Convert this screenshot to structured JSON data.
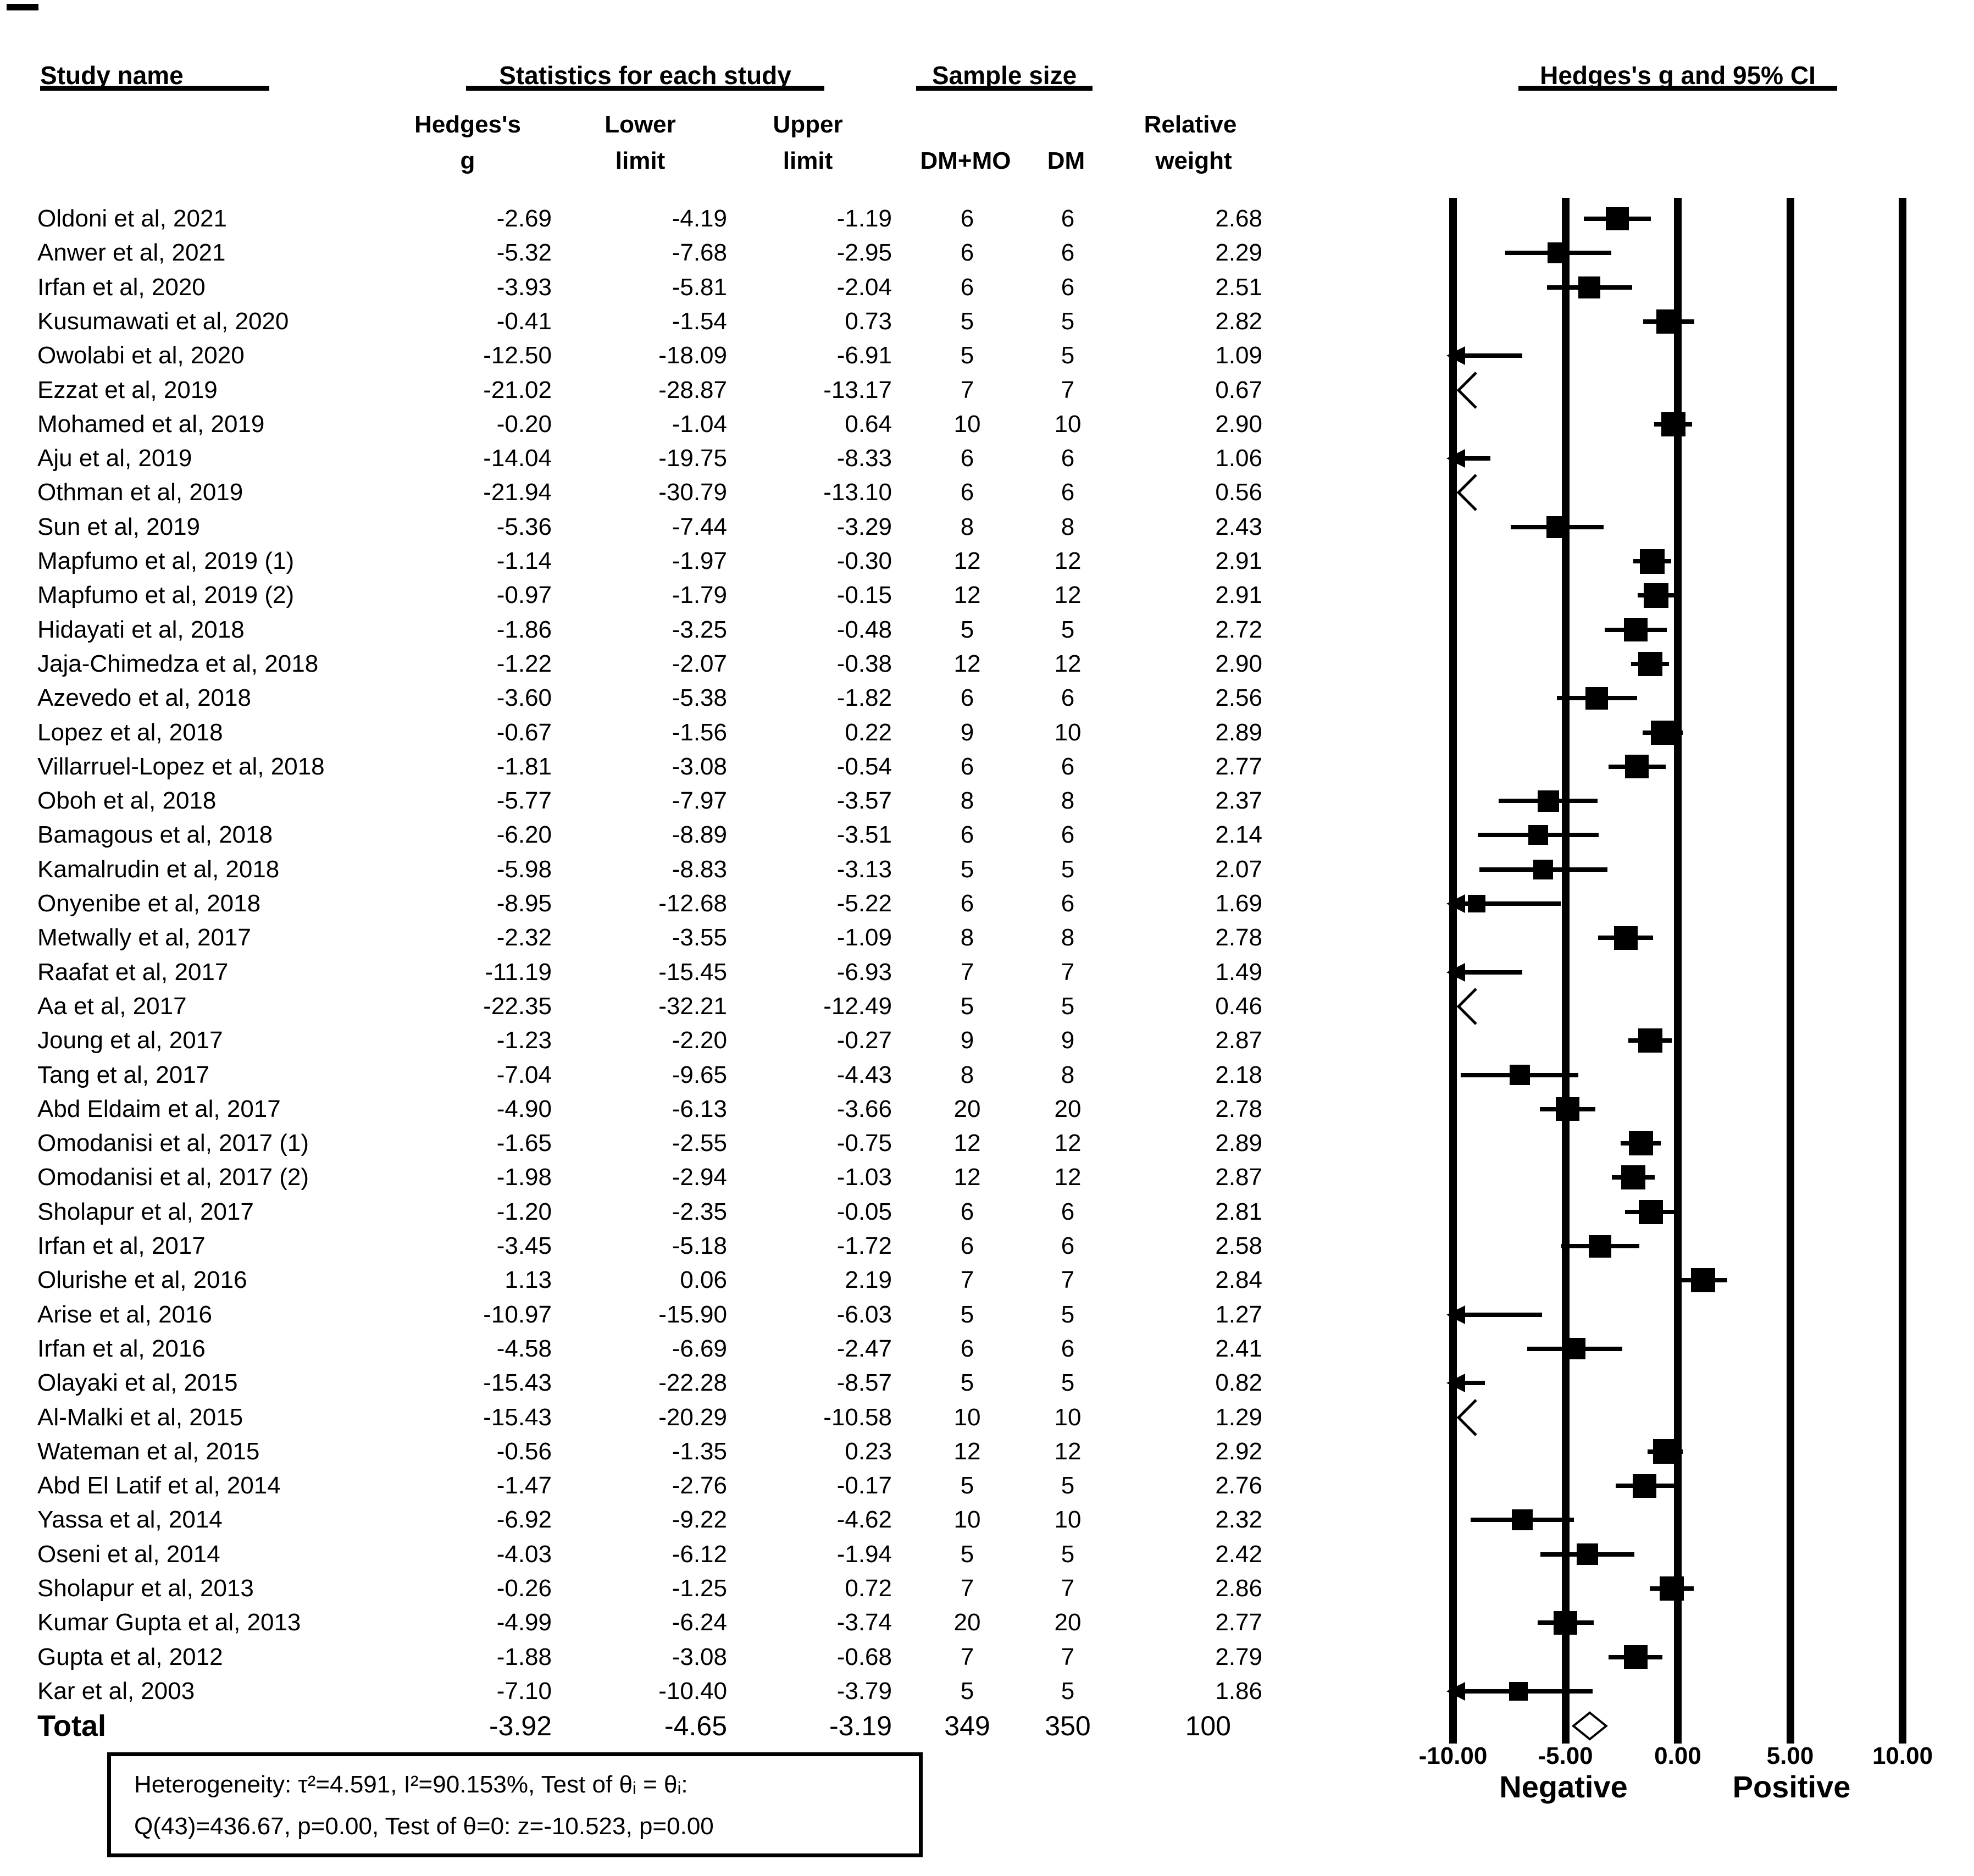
{
  "figure": {
    "headers": {
      "study_name": "Study name",
      "statistics": "Statistics for each study",
      "sample_size": "Sample size",
      "forest": "Hedges's g and 95% CI",
      "col_hedges_1": "Hedges's",
      "col_hedges_2": "g",
      "col_lower_1": "Lower",
      "col_lower_2": "limit",
      "col_upper_1": "Upper",
      "col_upper_2": "limit",
      "col_dm_mo": "DM+MO",
      "col_dm": "DM",
      "col_weight_1": "Relative",
      "col_weight_2": "weight"
    },
    "heterogeneity_line1": "Heterogeneity: τ²=4.591, I²=90.153%, Test of θᵢ = θᵢ:",
    "heterogeneity_line2": "Q(43)=436.67, p=0.00, Test of θ=0: z=-10.523, p=0.00"
  },
  "chart_data": {
    "type": "scatter",
    "subtype": "forest-plot",
    "title": "Hedges's g and 95% CI",
    "xlim": [
      -10,
      10
    ],
    "xticks": [
      -10,
      -5,
      0,
      5,
      10
    ],
    "xtick_labels": [
      "-10.00",
      "-5.00",
      "0.00",
      "5.00",
      "10.00"
    ],
    "negative_label": "Negative",
    "positive_label": "Positive",
    "grid": "vertical-lines-at-ticks",
    "marker_color": "#000000",
    "studies": [
      {
        "name": "Oldoni et al, 2021",
        "g": "-2.69",
        "lower": "-4.19",
        "upper": "-1.19",
        "dm_mo": "6",
        "dm": "6",
        "weight": "2.68"
      },
      {
        "name": "Anwer et al, 2021",
        "g": "-5.32",
        "lower": "-7.68",
        "upper": "-2.95",
        "dm_mo": "6",
        "dm": "6",
        "weight": "2.29"
      },
      {
        "name": "Irfan et al, 2020",
        "g": "-3.93",
        "lower": "-5.81",
        "upper": "-2.04",
        "dm_mo": "6",
        "dm": "6",
        "weight": "2.51"
      },
      {
        "name": "Kusumawati et al, 2020",
        "g": "-0.41",
        "lower": "-1.54",
        "upper": "0.73",
        "dm_mo": "5",
        "dm": "5",
        "weight": "2.82"
      },
      {
        "name": "Owolabi et al, 2020",
        "g": "-12.50",
        "lower": "-18.09",
        "upper": "-6.91",
        "dm_mo": "5",
        "dm": "5",
        "weight": "1.09"
      },
      {
        "name": "Ezzat et al, 2019",
        "g": "-21.02",
        "lower": "-28.87",
        "upper": "-13.17",
        "dm_mo": "7",
        "dm": "7",
        "weight": "0.67"
      },
      {
        "name": "Mohamed et al, 2019",
        "g": "-0.20",
        "lower": "-1.04",
        "upper": "0.64",
        "dm_mo": "10",
        "dm": "10",
        "weight": "2.90"
      },
      {
        "name": "Aju et al, 2019",
        "g": "-14.04",
        "lower": "-19.75",
        "upper": "-8.33",
        "dm_mo": "6",
        "dm": "6",
        "weight": "1.06"
      },
      {
        "name": "Othman et al, 2019",
        "g": "-21.94",
        "lower": "-30.79",
        "upper": "-13.10",
        "dm_mo": "6",
        "dm": "6",
        "weight": "0.56"
      },
      {
        "name": "Sun et al, 2019",
        "g": "-5.36",
        "lower": "-7.44",
        "upper": "-3.29",
        "dm_mo": "8",
        "dm": "8",
        "weight": "2.43"
      },
      {
        "name": "Mapfumo et al, 2019 (1)",
        "g": "-1.14",
        "lower": "-1.97",
        "upper": "-0.30",
        "dm_mo": "12",
        "dm": "12",
        "weight": "2.91"
      },
      {
        "name": "Mapfumo et al, 2019 (2)",
        "g": "-0.97",
        "lower": "-1.79",
        "upper": "-0.15",
        "dm_mo": "12",
        "dm": "12",
        "weight": "2.91"
      },
      {
        "name": "Hidayati et al, 2018",
        "g": "-1.86",
        "lower": "-3.25",
        "upper": "-0.48",
        "dm_mo": "5",
        "dm": "5",
        "weight": "2.72"
      },
      {
        "name": "Jaja-Chimedza et al, 2018",
        "g": "-1.22",
        "lower": "-2.07",
        "upper": "-0.38",
        "dm_mo": "12",
        "dm": "12",
        "weight": "2.90"
      },
      {
        "name": "Azevedo et al, 2018",
        "g": "-3.60",
        "lower": "-5.38",
        "upper": "-1.82",
        "dm_mo": "6",
        "dm": "6",
        "weight": "2.56"
      },
      {
        "name": "Lopez et al, 2018",
        "g": "-0.67",
        "lower": "-1.56",
        "upper": "0.22",
        "dm_mo": "9",
        "dm": "10",
        "weight": "2.89"
      },
      {
        "name": "Villarruel-Lopez et al, 2018",
        "g": "-1.81",
        "lower": "-3.08",
        "upper": "-0.54",
        "dm_mo": "6",
        "dm": "6",
        "weight": "2.77"
      },
      {
        "name": "Oboh et al, 2018",
        "g": "-5.77",
        "lower": "-7.97",
        "upper": "-3.57",
        "dm_mo": "8",
        "dm": "8",
        "weight": "2.37"
      },
      {
        "name": "Bamagous et al, 2018",
        "g": "-6.20",
        "lower": "-8.89",
        "upper": "-3.51",
        "dm_mo": "6",
        "dm": "6",
        "weight": "2.14"
      },
      {
        "name": "Kamalrudin et al, 2018",
        "g": "-5.98",
        "lower": "-8.83",
        "upper": "-3.13",
        "dm_mo": "5",
        "dm": "5",
        "weight": "2.07"
      },
      {
        "name": "Onyenibe et al, 2018",
        "g": "-8.95",
        "lower": "-12.68",
        "upper": "-5.22",
        "dm_mo": "6",
        "dm": "6",
        "weight": "1.69"
      },
      {
        "name": "Metwally et al, 2017",
        "g": "-2.32",
        "lower": "-3.55",
        "upper": "-1.09",
        "dm_mo": "8",
        "dm": "8",
        "weight": "2.78"
      },
      {
        "name": "Raafat et al, 2017",
        "g": "-11.19",
        "lower": "-15.45",
        "upper": "-6.93",
        "dm_mo": "7",
        "dm": "7",
        "weight": "1.49"
      },
      {
        "name": "Aa et al, 2017",
        "g": "-22.35",
        "lower": "-32.21",
        "upper": "-12.49",
        "dm_mo": "5",
        "dm": "5",
        "weight": "0.46"
      },
      {
        "name": "Joung et al, 2017",
        "g": "-1.23",
        "lower": "-2.20",
        "upper": "-0.27",
        "dm_mo": "9",
        "dm": "9",
        "weight": "2.87"
      },
      {
        "name": "Tang et al, 2017",
        "g": "-7.04",
        "lower": "-9.65",
        "upper": "-4.43",
        "dm_mo": "8",
        "dm": "8",
        "weight": "2.18"
      },
      {
        "name": "Abd Eldaim et al, 2017",
        "g": "-4.90",
        "lower": "-6.13",
        "upper": "-3.66",
        "dm_mo": "20",
        "dm": "20",
        "weight": "2.78"
      },
      {
        "name": "Omodanisi et al, 2017 (1)",
        "g": "-1.65",
        "lower": "-2.55",
        "upper": "-0.75",
        "dm_mo": "12",
        "dm": "12",
        "weight": "2.89"
      },
      {
        "name": "Omodanisi et al, 2017 (2)",
        "g": "-1.98",
        "lower": "-2.94",
        "upper": "-1.03",
        "dm_mo": "12",
        "dm": "12",
        "weight": "2.87"
      },
      {
        "name": "Sholapur et al, 2017",
        "g": "-1.20",
        "lower": "-2.35",
        "upper": "-0.05",
        "dm_mo": "6",
        "dm": "6",
        "weight": "2.81"
      },
      {
        "name": "Irfan et al, 2017",
        "g": "-3.45",
        "lower": "-5.18",
        "upper": "-1.72",
        "dm_mo": "6",
        "dm": "6",
        "weight": "2.58"
      },
      {
        "name": "Olurishe et al, 2016",
        "g": "1.13",
        "lower": "0.06",
        "upper": "2.19",
        "dm_mo": "7",
        "dm": "7",
        "weight": "2.84"
      },
      {
        "name": "Arise et al, 2016",
        "g": "-10.97",
        "lower": "-15.90",
        "upper": "-6.03",
        "dm_mo": "5",
        "dm": "5",
        "weight": "1.27"
      },
      {
        "name": "Irfan et al, 2016",
        "g": "-4.58",
        "lower": "-6.69",
        "upper": "-2.47",
        "dm_mo": "6",
        "dm": "6",
        "weight": "2.41"
      },
      {
        "name": "Olayaki et al, 2015",
        "g": "-15.43",
        "lower": "-22.28",
        "upper": "-8.57",
        "dm_mo": "5",
        "dm": "5",
        "weight": "0.82"
      },
      {
        "name": "Al-Malki et al, 2015",
        "g": "-15.43",
        "lower": "-20.29",
        "upper": "-10.58",
        "dm_mo": "10",
        "dm": "10",
        "weight": "1.29"
      },
      {
        "name": "Wateman et al, 2015",
        "g": "-0.56",
        "lower": "-1.35",
        "upper": "0.23",
        "dm_mo": "12",
        "dm": "12",
        "weight": "2.92"
      },
      {
        "name": "Abd El Latif et al, 2014",
        "g": "-1.47",
        "lower": "-2.76",
        "upper": "-0.17",
        "dm_mo": "5",
        "dm": "5",
        "weight": "2.76"
      },
      {
        "name": "Yassa et al, 2014",
        "g": "-6.92",
        "lower": "-9.22",
        "upper": "-4.62",
        "dm_mo": "10",
        "dm": "10",
        "weight": "2.32"
      },
      {
        "name": "Oseni et al, 2014",
        "g": "-4.03",
        "lower": "-6.12",
        "upper": "-1.94",
        "dm_mo": "5",
        "dm": "5",
        "weight": "2.42"
      },
      {
        "name": "Sholapur et al, 2013",
        "g": "-0.26",
        "lower": "-1.25",
        "upper": "0.72",
        "dm_mo": "7",
        "dm": "7",
        "weight": "2.86"
      },
      {
        "name": "Kumar Gupta et al, 2013",
        "g": "-4.99",
        "lower": "-6.24",
        "upper": "-3.74",
        "dm_mo": "20",
        "dm": "20",
        "weight": "2.77"
      },
      {
        "name": "Gupta et al, 2012",
        "g": "-1.88",
        "lower": "-3.08",
        "upper": "-0.68",
        "dm_mo": "7",
        "dm": "7",
        "weight": "2.79"
      },
      {
        "name": "Kar et al, 2003",
        "g": "-7.10",
        "lower": "-10.40",
        "upper": "-3.79",
        "dm_mo": "5",
        "dm": "5",
        "weight": "1.86"
      }
    ],
    "total": {
      "name": "Total",
      "g": "-3.92",
      "lower": "-4.65",
      "upper": "-3.19",
      "dm_mo": "349",
      "dm": "350",
      "weight": "100"
    }
  }
}
